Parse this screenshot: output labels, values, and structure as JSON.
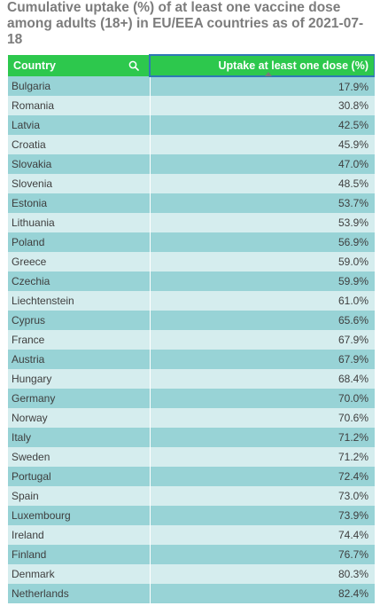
{
  "chart_data": {
    "type": "table",
    "title": "Cumulative uptake (%) of at least one vaccine dose among adults (18+) in EU/EEA countries as of 2021-07-18",
    "columns": [
      "Country",
      "Uptake at least one dose (%)"
    ],
    "rows": [
      {
        "country": "Bulgaria",
        "uptake": "17.9%"
      },
      {
        "country": "Romania",
        "uptake": "30.8%"
      },
      {
        "country": "Latvia",
        "uptake": "42.5%"
      },
      {
        "country": "Croatia",
        "uptake": "45.9%"
      },
      {
        "country": "Slovakia",
        "uptake": "47.0%"
      },
      {
        "country": "Slovenia",
        "uptake": "48.5%"
      },
      {
        "country": "Estonia",
        "uptake": "53.7%"
      },
      {
        "country": "Lithuania",
        "uptake": "53.9%"
      },
      {
        "country": "Poland",
        "uptake": "56.9%"
      },
      {
        "country": "Greece",
        "uptake": "59.0%"
      },
      {
        "country": "Czechia",
        "uptake": "59.9%"
      },
      {
        "country": "Liechtenstein",
        "uptake": "61.0%"
      },
      {
        "country": "Cyprus",
        "uptake": "65.6%"
      },
      {
        "country": "France",
        "uptake": "67.9%"
      },
      {
        "country": "Austria",
        "uptake": "67.9%"
      },
      {
        "country": "Hungary",
        "uptake": "68.4%"
      },
      {
        "country": "Germany",
        "uptake": "70.0%"
      },
      {
        "country": "Norway",
        "uptake": "70.6%"
      },
      {
        "country": "Italy",
        "uptake": "71.2%"
      },
      {
        "country": "Sweden",
        "uptake": "71.2%"
      },
      {
        "country": "Portugal",
        "uptake": "72.4%"
      },
      {
        "country": "Spain",
        "uptake": "73.0%"
      },
      {
        "country": "Luxembourg",
        "uptake": "73.9%"
      },
      {
        "country": "Ireland",
        "uptake": "74.4%"
      },
      {
        "country": "Finland",
        "uptake": "76.7%"
      },
      {
        "country": "Denmark",
        "uptake": "80.3%"
      },
      {
        "country": "Netherlands",
        "uptake": "82.4%"
      }
    ],
    "sorted_by": "Uptake at least one dose (%)",
    "sort_order": "ascending",
    "colors": {
      "header": "#2dc84d",
      "row_odd": "#98d3d6",
      "row_even": "#d5edee",
      "sorted_column_outline": "#2f78b5"
    }
  },
  "icons": {
    "country_search": "search-icon",
    "sort_indicator": "sort-ascending-icon"
  }
}
